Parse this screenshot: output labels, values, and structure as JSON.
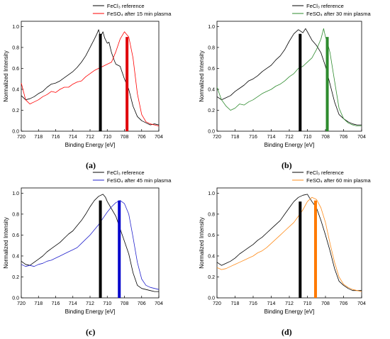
{
  "figure": {
    "panel_labels": [
      "(a)",
      "(b)",
      "(c)",
      "(d)"
    ]
  },
  "chart_data": [
    {
      "type": "line",
      "panel": "(a)",
      "xlabel": "Binding Energy [eV]",
      "ylabel": "Normalized Intensity",
      "xlim": [
        720,
        704
      ],
      "ylim": [
        0.0,
        1.05
      ],
      "x_reversed": true,
      "xticks": [
        720,
        718,
        716,
        714,
        712,
        710,
        708,
        706,
        704
      ],
      "yticks": [
        0.0,
        0.2,
        0.4,
        0.6,
        0.8,
        1.0
      ],
      "grid": false,
      "legend": "top-right",
      "series": [
        {
          "name": "FeCl₃ reference",
          "color": "#000000",
          "x": [
            720,
            719.5,
            719,
            718.5,
            718,
            717.5,
            717,
            716.5,
            716,
            715.5,
            715,
            714.5,
            714,
            713.5,
            713,
            712.5,
            712,
            711.5,
            711.2,
            711,
            710.8,
            710.5,
            710.3,
            710,
            709.8,
            709.5,
            709.2,
            709,
            708.5,
            708,
            707.5,
            707,
            706.5,
            706,
            705.5,
            705,
            704.5,
            704
          ],
          "y": [
            0.34,
            0.3,
            0.31,
            0.33,
            0.36,
            0.38,
            0.42,
            0.45,
            0.46,
            0.48,
            0.51,
            0.54,
            0.57,
            0.61,
            0.66,
            0.72,
            0.8,
            0.88,
            0.93,
            0.97,
            0.9,
            0.95,
            0.89,
            0.84,
            0.85,
            0.75,
            0.68,
            0.64,
            0.62,
            0.5,
            0.4,
            0.24,
            0.14,
            0.1,
            0.08,
            0.06,
            0.07,
            0.06
          ]
        },
        {
          "name": "FeSO₄ after 15 min plasma",
          "color": "#ff0000",
          "x": [
            720,
            719.5,
            719,
            718.5,
            718,
            717.5,
            717,
            716.5,
            716,
            715.5,
            715,
            714.5,
            714,
            713.5,
            713,
            712.5,
            712,
            711.5,
            711,
            710.5,
            710,
            709.5,
            709,
            708.5,
            708,
            707.8,
            707.5,
            707,
            706.5,
            706,
            705.5,
            705,
            704.5,
            704
          ],
          "y": [
            0.46,
            0.3,
            0.26,
            0.28,
            0.3,
            0.33,
            0.35,
            0.38,
            0.37,
            0.4,
            0.42,
            0.42,
            0.45,
            0.47,
            0.48,
            0.52,
            0.55,
            0.58,
            0.6,
            0.62,
            0.64,
            0.66,
            0.76,
            0.88,
            0.95,
            0.93,
            0.9,
            0.7,
            0.36,
            0.16,
            0.09,
            0.07,
            0.06,
            0.05
          ]
        }
      ],
      "markers": [
        {
          "x": 710.8,
          "height": 0.93,
          "color": "#000000"
        },
        {
          "x": 707.7,
          "height": 0.9,
          "color": "#e0000a"
        }
      ]
    },
    {
      "type": "line",
      "panel": "(b)",
      "xlabel": "Binding Energy [eV]",
      "ylabel": "Normalized Intensity",
      "xlim": [
        720,
        704
      ],
      "ylim": [
        0.0,
        1.05
      ],
      "x_reversed": true,
      "xticks": [
        720,
        718,
        716,
        714,
        712,
        710,
        708,
        706,
        704
      ],
      "yticks": [
        0.0,
        0.2,
        0.4,
        0.6,
        0.8,
        1.0
      ],
      "grid": false,
      "legend": "top-right",
      "series": [
        {
          "name": "FeCl₃ reference",
          "color": "#000000",
          "x": [
            720,
            719.5,
            719,
            718.5,
            718,
            717.5,
            717,
            716.5,
            716,
            715.5,
            715,
            714.5,
            714,
            713.5,
            713,
            712.5,
            712,
            711.5,
            711,
            710.5,
            710.2,
            710,
            709.5,
            709,
            708.5,
            708,
            707.5,
            707,
            706.5,
            706,
            705.5,
            705,
            704.5,
            704
          ],
          "y": [
            0.33,
            0.3,
            0.32,
            0.34,
            0.38,
            0.41,
            0.44,
            0.48,
            0.5,
            0.53,
            0.57,
            0.6,
            0.63,
            0.68,
            0.72,
            0.78,
            0.86,
            0.93,
            0.97,
            0.94,
            0.98,
            0.95,
            0.87,
            0.82,
            0.75,
            0.62,
            0.45,
            0.28,
            0.16,
            0.12,
            0.09,
            0.07,
            0.06,
            0.06
          ]
        },
        {
          "name": "FeSO₄ after 30 min plasma",
          "color": "#2e8b2e",
          "x": [
            720,
            719.5,
            719,
            718.5,
            718,
            717.5,
            717,
            716.5,
            716,
            715.5,
            715,
            714.5,
            714,
            713.5,
            713,
            712.5,
            712,
            711.5,
            711,
            710.5,
            710,
            709.5,
            709,
            708.5,
            708.2,
            708,
            707.7,
            707.5,
            707,
            706.5,
            706,
            705.5,
            705,
            704.5,
            704
          ],
          "y": [
            0.42,
            0.3,
            0.24,
            0.2,
            0.22,
            0.26,
            0.25,
            0.28,
            0.3,
            0.33,
            0.36,
            0.38,
            0.4,
            0.43,
            0.45,
            0.48,
            0.52,
            0.55,
            0.6,
            0.62,
            0.66,
            0.7,
            0.78,
            0.88,
            0.98,
            0.9,
            0.82,
            0.75,
            0.48,
            0.22,
            0.12,
            0.08,
            0.06,
            0.05,
            0.05
          ]
        }
      ],
      "markers": [
        {
          "x": 710.8,
          "height": 0.93,
          "color": "#000000"
        },
        {
          "x": 707.8,
          "height": 0.9,
          "color": "#2e8b2e"
        }
      ]
    },
    {
      "type": "line",
      "panel": "(c)",
      "xlabel": "Binding Energy [eV]",
      "ylabel": "Normalized Intensity",
      "xlim": [
        720,
        704
      ],
      "ylim": [
        0.0,
        1.05
      ],
      "x_reversed": true,
      "xticks": [
        720,
        718,
        716,
        714,
        712,
        710,
        708,
        706,
        704
      ],
      "yticks": [
        0.0,
        0.2,
        0.4,
        0.6,
        0.8,
        1.0
      ],
      "grid": false,
      "legend": "top-right",
      "series": [
        {
          "name": "FeCl₃ reference",
          "color": "#000000",
          "x": [
            720,
            719.5,
            719,
            718.5,
            718,
            717.5,
            717,
            716.5,
            716,
            715.5,
            715,
            714.5,
            714,
            713.5,
            713,
            712.5,
            712,
            711.5,
            711,
            710.5,
            710.2,
            710,
            709.5,
            709,
            708.5,
            708,
            707.5,
            707,
            706.5,
            706,
            705.5,
            705,
            704.5,
            704
          ],
          "y": [
            0.35,
            0.32,
            0.31,
            0.34,
            0.37,
            0.4,
            0.44,
            0.47,
            0.5,
            0.53,
            0.57,
            0.61,
            0.64,
            0.69,
            0.74,
            0.8,
            0.87,
            0.93,
            0.97,
            0.99,
            0.96,
            0.92,
            0.85,
            0.78,
            0.66,
            0.54,
            0.42,
            0.24,
            0.12,
            0.09,
            0.08,
            0.07,
            0.06,
            0.06
          ]
        },
        {
          "name": "FeSO₄ after 45 min plasma",
          "color": "#2222cc",
          "x": [
            720,
            719.5,
            719,
            718.5,
            718,
            717.5,
            717,
            716.5,
            716,
            715.5,
            715,
            714.5,
            714,
            713.5,
            713,
            712.5,
            712,
            711.5,
            711,
            710.5,
            710,
            709.5,
            709,
            708.5,
            708,
            707.5,
            707,
            706.5,
            706,
            705.5,
            705,
            704.5,
            704
          ],
          "y": [
            0.32,
            0.3,
            0.31,
            0.3,
            0.32,
            0.33,
            0.35,
            0.36,
            0.38,
            0.4,
            0.42,
            0.44,
            0.46,
            0.48,
            0.52,
            0.56,
            0.6,
            0.65,
            0.7,
            0.76,
            0.82,
            0.87,
            0.91,
            0.93,
            0.9,
            0.8,
            0.58,
            0.34,
            0.18,
            0.12,
            0.1,
            0.09,
            0.08
          ]
        }
      ],
      "markers": [
        {
          "x": 710.8,
          "height": 0.93,
          "color": "#000000"
        },
        {
          "x": 708.6,
          "height": 0.93,
          "color": "#0000cc"
        }
      ]
    },
    {
      "type": "line",
      "panel": "(d)",
      "xlabel": "Binding Energy [eV]",
      "ylabel": "Normalized Intensity",
      "xlim": [
        720,
        704
      ],
      "ylim": [
        0.0,
        1.05
      ],
      "x_reversed": true,
      "xticks": [
        720,
        718,
        716,
        714,
        712,
        710,
        708,
        706,
        704
      ],
      "yticks": [
        0.0,
        0.2,
        0.4,
        0.6,
        0.8,
        1.0
      ],
      "grid": false,
      "legend": "top-right",
      "series": [
        {
          "name": "FeCl₃ reference",
          "color": "#000000",
          "x": [
            720,
            719.5,
            719,
            718.5,
            718,
            717.5,
            717,
            716.5,
            716,
            715.5,
            715,
            714.5,
            714,
            713.5,
            713,
            712.5,
            712,
            711.5,
            711,
            710.5,
            710,
            709.8,
            709.5,
            709,
            708.5,
            708,
            707.5,
            707,
            706.5,
            706,
            705.5,
            705,
            704.5,
            704
          ],
          "y": [
            0.34,
            0.31,
            0.33,
            0.35,
            0.38,
            0.42,
            0.45,
            0.48,
            0.51,
            0.55,
            0.58,
            0.62,
            0.66,
            0.7,
            0.74,
            0.8,
            0.86,
            0.92,
            0.96,
            0.98,
            0.99,
            0.96,
            0.92,
            0.86,
            0.74,
            0.6,
            0.45,
            0.28,
            0.16,
            0.12,
            0.09,
            0.07,
            0.07,
            0.07
          ]
        },
        {
          "name": "FeSO₄ after 60 min plasma",
          "color": "#ff8c1a",
          "x": [
            720,
            719.5,
            719,
            718.5,
            718,
            717.5,
            717,
            716.5,
            716,
            715.5,
            715,
            714.5,
            714,
            713.5,
            713,
            712.5,
            712,
            711.5,
            711,
            710.5,
            710,
            709.5,
            709,
            708.5,
            708,
            707.5,
            707,
            706.5,
            706,
            705.5,
            705,
            704.5,
            704
          ],
          "y": [
            0.29,
            0.27,
            0.28,
            0.3,
            0.32,
            0.34,
            0.36,
            0.38,
            0.4,
            0.43,
            0.45,
            0.48,
            0.52,
            0.56,
            0.6,
            0.64,
            0.68,
            0.72,
            0.78,
            0.84,
            0.92,
            0.96,
            0.94,
            0.86,
            0.72,
            0.52,
            0.34,
            0.2,
            0.13,
            0.1,
            0.08,
            0.07,
            0.06
          ]
        }
      ],
      "markers": [
        {
          "x": 710.8,
          "height": 0.92,
          "color": "#000000"
        },
        {
          "x": 709.1,
          "height": 0.93,
          "color": "#ff7a00"
        }
      ]
    }
  ]
}
